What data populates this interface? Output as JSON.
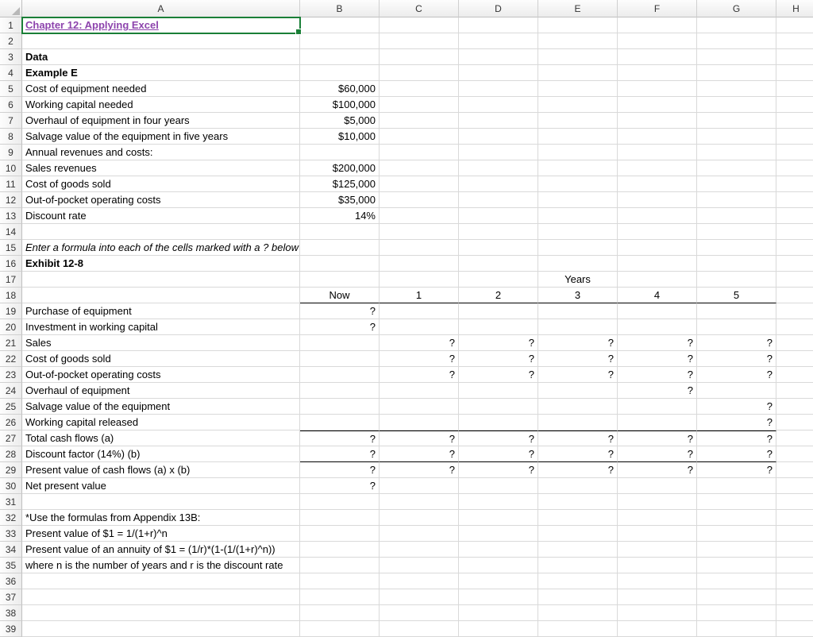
{
  "columns": [
    "A",
    "B",
    "C",
    "D",
    "E",
    "F",
    "G",
    "H"
  ],
  "rowCount": 39,
  "activeCell": {
    "row": 1,
    "col": 1
  },
  "colors": {
    "link": "#8d44ad",
    "activeBorder": "#1a7f37",
    "gridline": "#d9d9d9",
    "headerBorder": "#bfbfbf",
    "headerBg1": "#fdfdfd",
    "headerBg2": "#ececec"
  },
  "rows": {
    "1": {
      "A": {
        "v": "Chapter 12: Applying Excel",
        "cls": "link active-cell"
      }
    },
    "3": {
      "A": {
        "v": "Data",
        "cls": "bold"
      }
    },
    "4": {
      "A": {
        "v": "Example E",
        "cls": "bold"
      }
    },
    "5": {
      "A": {
        "v": "Cost of equipment needed"
      },
      "B": {
        "v": "$60,000",
        "cls": "right"
      }
    },
    "6": {
      "A": {
        "v": "Working capital needed"
      },
      "B": {
        "v": "$100,000",
        "cls": "right"
      }
    },
    "7": {
      "A": {
        "v": "Overhaul of equipment in four years"
      },
      "B": {
        "v": "$5,000",
        "cls": "right"
      }
    },
    "8": {
      "A": {
        "v": "Salvage value of the equipment in five years",
        "cls": "overflow"
      },
      "B": {
        "v": "$10,000",
        "cls": "right"
      }
    },
    "9": {
      "A": {
        "v": "Annual revenues and costs:"
      }
    },
    "10": {
      "A": {
        "v": "  Sales revenues"
      },
      "B": {
        "v": "$200,000",
        "cls": "right"
      }
    },
    "11": {
      "A": {
        "v": "  Cost of goods sold"
      },
      "B": {
        "v": "$125,000",
        "cls": "right"
      }
    },
    "12": {
      "A": {
        "v": "  Out-of-pocket operating costs"
      },
      "B": {
        "v": "$35,000",
        "cls": "right"
      }
    },
    "13": {
      "A": {
        "v": "Discount rate"
      },
      "B": {
        "v": "14%",
        "cls": "right"
      }
    },
    "15": {
      "A": {
        "v": "Enter a formula into each of the cells marked with a ? below",
        "cls": "italic overflow"
      }
    },
    "16": {
      "A": {
        "v": "Exhibit 12-8",
        "cls": "bold"
      }
    },
    "17": {
      "E": {
        "v": "Years",
        "cls": "center"
      }
    },
    "18": {
      "B": {
        "v": "Now",
        "cls": "center bottom-border-thin"
      },
      "C": {
        "v": "1",
        "cls": "center bottom-border-thin"
      },
      "D": {
        "v": "2",
        "cls": "center bottom-border-thin"
      },
      "E": {
        "v": "3",
        "cls": "center bottom-border-thin"
      },
      "F": {
        "v": "4",
        "cls": "center bottom-border-thin"
      },
      "G": {
        "v": "5",
        "cls": "center bottom-border-thin"
      }
    },
    "19": {
      "A": {
        "v": "Purchase of equipment"
      },
      "B": {
        "v": "?",
        "cls": "right"
      }
    },
    "20": {
      "A": {
        "v": "Investment in working capital"
      },
      "B": {
        "v": "?",
        "cls": "right"
      }
    },
    "21": {
      "A": {
        "v": "Sales"
      },
      "C": {
        "v": "?",
        "cls": "right"
      },
      "D": {
        "v": "?",
        "cls": "right"
      },
      "E": {
        "v": "?",
        "cls": "right"
      },
      "F": {
        "v": "?",
        "cls": "right"
      },
      "G": {
        "v": "?",
        "cls": "right"
      }
    },
    "22": {
      "A": {
        "v": "Cost of goods sold"
      },
      "C": {
        "v": "?",
        "cls": "right"
      },
      "D": {
        "v": "?",
        "cls": "right"
      },
      "E": {
        "v": "?",
        "cls": "right"
      },
      "F": {
        "v": "?",
        "cls": "right"
      },
      "G": {
        "v": "?",
        "cls": "right"
      }
    },
    "23": {
      "A": {
        "v": "Out-of-pocket operating costs"
      },
      "C": {
        "v": "?",
        "cls": "right"
      },
      "D": {
        "v": "?",
        "cls": "right"
      },
      "E": {
        "v": "?",
        "cls": "right"
      },
      "F": {
        "v": "?",
        "cls": "right"
      },
      "G": {
        "v": "?",
        "cls": "right"
      }
    },
    "24": {
      "A": {
        "v": "Overhaul of equipment"
      },
      "F": {
        "v": "?",
        "cls": "right"
      }
    },
    "25": {
      "A": {
        "v": "Salvage value of the equipment"
      },
      "G": {
        "v": "?",
        "cls": "right"
      }
    },
    "26": {
      "A": {
        "v": "Working capital released"
      },
      "G": {
        "v": "?",
        "cls": "right"
      }
    },
    "27": {
      "A": {
        "v": "Total cash flows (a)"
      },
      "B": {
        "v": "?",
        "cls": "right top-border"
      },
      "C": {
        "v": "?",
        "cls": "right top-border"
      },
      "D": {
        "v": "?",
        "cls": "right top-border"
      },
      "E": {
        "v": "?",
        "cls": "right top-border"
      },
      "F": {
        "v": "?",
        "cls": "right top-border"
      },
      "G": {
        "v": "?",
        "cls": "right top-border"
      }
    },
    "28": {
      "A": {
        "v": "Discount factor (14%) (b)"
      },
      "B": {
        "v": "?",
        "cls": "right bottom-border-thin"
      },
      "C": {
        "v": "?",
        "cls": "right bottom-border-thin"
      },
      "D": {
        "v": "?",
        "cls": "right bottom-border-thin"
      },
      "E": {
        "v": "?",
        "cls": "right bottom-border-thin"
      },
      "F": {
        "v": "?",
        "cls": "right bottom-border-thin"
      },
      "G": {
        "v": "?",
        "cls": "right bottom-border-thin"
      }
    },
    "29": {
      "A": {
        "v": "Present value of cash flows (a) x (b)"
      },
      "B": {
        "v": "?",
        "cls": "right"
      },
      "C": {
        "v": "?",
        "cls": "right"
      },
      "D": {
        "v": "?",
        "cls": "right"
      },
      "E": {
        "v": "?",
        "cls": "right"
      },
      "F": {
        "v": "?",
        "cls": "right"
      },
      "G": {
        "v": "?",
        "cls": "right"
      }
    },
    "30": {
      "A": {
        "v": "Net present value"
      },
      "B": {
        "v": "?",
        "cls": "right"
      }
    },
    "32": {
      "A": {
        "v": "*Use the formulas from Appendix 13B:"
      }
    },
    "33": {
      "A": {
        "v": "  Present value of $1 = 1/(1+r)^n"
      }
    },
    "34": {
      "A": {
        "v": "  Present value of an annuity of $1 = (1/r)*(1-(1/(1+r)^n))",
        "cls": "overflow"
      }
    },
    "35": {
      "A": {
        "v": "  where n is the number of years and r is the discount rate",
        "cls": "overflow"
      }
    }
  }
}
